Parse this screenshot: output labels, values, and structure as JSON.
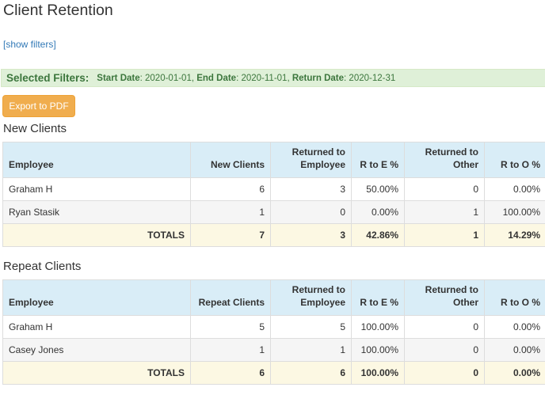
{
  "page": {
    "title": "Client Retention",
    "show_filters": "[show filters]"
  },
  "filters": {
    "title": "Selected Filters:",
    "items": [
      {
        "label": "Start Date",
        "value": "2020-01-01"
      },
      {
        "label": "End Date",
        "value": "2020-11-01"
      },
      {
        "label": "Return Date",
        "value": "2020-12-31"
      }
    ]
  },
  "export_button": "Export to PDF",
  "new_clients": {
    "title": "New Clients",
    "headers": [
      "Employee",
      "New Clients",
      "Returned to Employee",
      "R to E %",
      "Returned to Other",
      "R to O %"
    ],
    "rows": [
      [
        "Graham H",
        "6",
        "3",
        "50.00%",
        "0",
        "0.00%"
      ],
      [
        "Ryan Stasik",
        "1",
        "0",
        "0.00%",
        "1",
        "100.00%"
      ]
    ],
    "totals": [
      "TOTALS",
      "7",
      "3",
      "42.86%",
      "1",
      "14.29%"
    ]
  },
  "repeat_clients": {
    "title": "Repeat Clients",
    "headers": [
      "Employee",
      "Repeat Clients",
      "Returned to Employee",
      "R to E %",
      "Returned to Other",
      "R to O %"
    ],
    "rows": [
      [
        "Graham H",
        "5",
        "5",
        "100.00%",
        "0",
        "0.00%"
      ],
      [
        "Casey Jones",
        "1",
        "1",
        "100.00%",
        "0",
        "0.00%"
      ]
    ],
    "totals": [
      "TOTALS",
      "6",
      "6",
      "100.00%",
      "0",
      "0.00%"
    ]
  }
}
